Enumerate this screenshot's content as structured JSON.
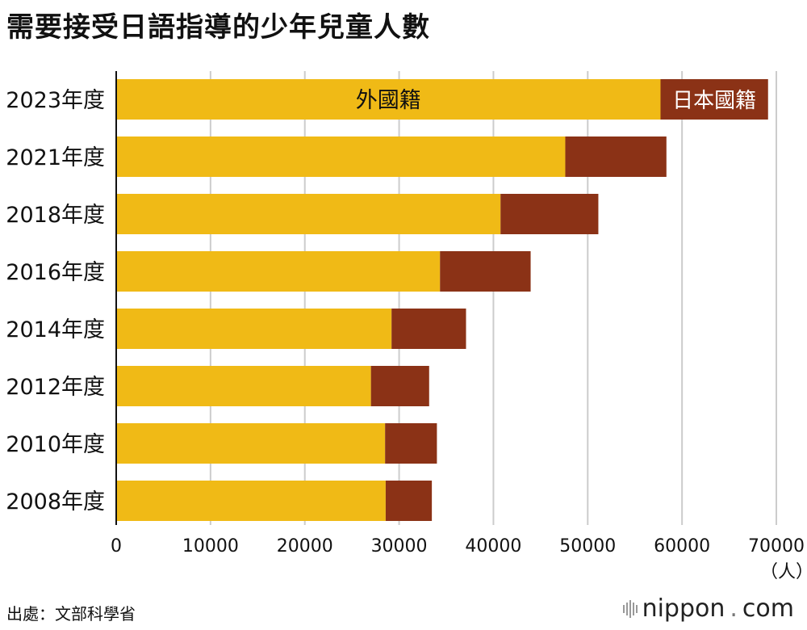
{
  "title": "需要接受日語指導的少年兒童人數",
  "source": "出處：文部科學省",
  "brand": {
    "name": "nippon",
    "dot": ".",
    "tld": "com"
  },
  "colors": {
    "foreign": "#F0BA16",
    "japanese": "#8B3216",
    "grid": "#cccccc",
    "axis": "#111111"
  },
  "chart_data": {
    "type": "bar",
    "orientation": "horizontal",
    "stacked": true,
    "title": "需要接受日語指導的少年兒童人數",
    "categories": [
      "2023年度",
      "2021年度",
      "2018年度",
      "2016年度",
      "2014年度",
      "2012年度",
      "2010年度",
      "2008年度"
    ],
    "series": [
      {
        "name": "外國籍",
        "values": [
          57718,
          47619,
          40755,
          34335,
          29198,
          27013,
          28511,
          28575
        ]
      },
      {
        "name": "日本國籍",
        "values": [
          11405,
          10726,
          10371,
          9612,
          7897,
          6171,
          5496,
          4895
        ]
      }
    ],
    "xlim": [
      0,
      70000
    ],
    "xticks": [
      "0",
      "10000",
      "20000",
      "30000",
      "40000",
      "50000",
      "60000",
      "70000"
    ],
    "unit_label": "（人）",
    "grid": true,
    "legend": "inline in top bar"
  }
}
